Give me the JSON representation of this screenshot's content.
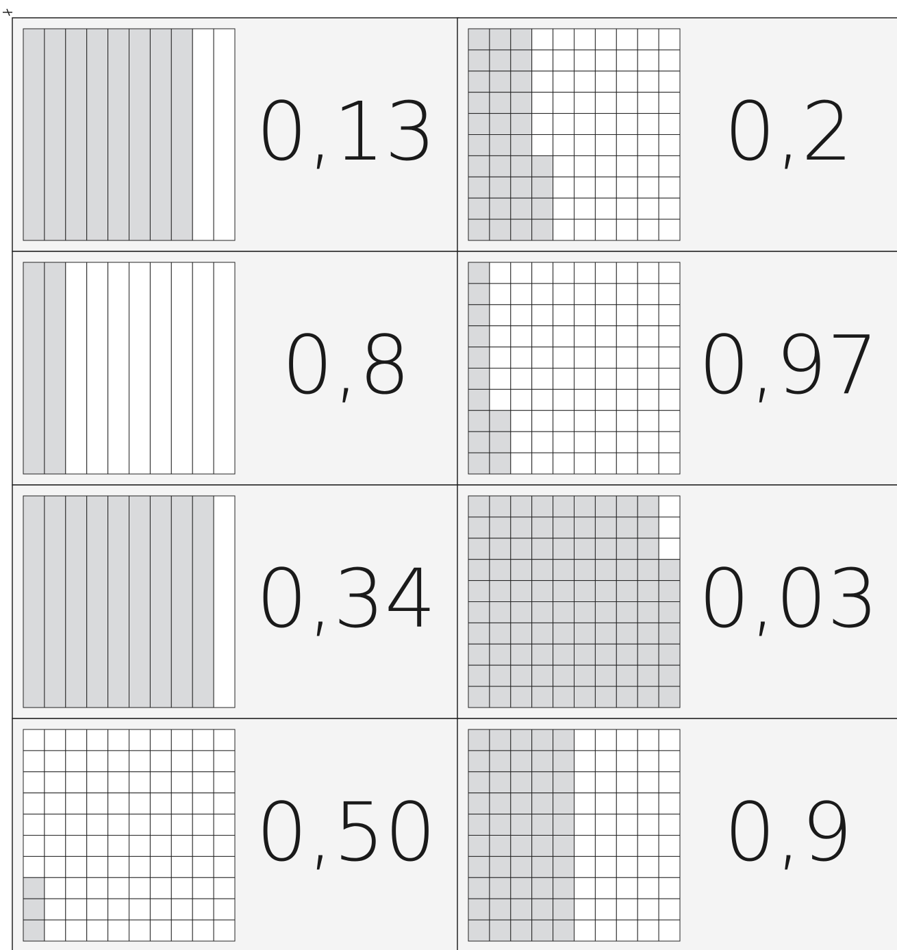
{
  "cards": [
    {
      "label": "0,13",
      "grid": "tenths",
      "shaded": 8
    },
    {
      "label": "0,2",
      "grid": "hundredths",
      "shaded": 34
    },
    {
      "label": "0,8",
      "grid": "tenths",
      "shaded": 2
    },
    {
      "label": "0,97",
      "grid": "hundredths",
      "shaded": 13
    },
    {
      "label": "0,34",
      "grid": "tenths",
      "shaded": 9
    },
    {
      "label": "0,03",
      "grid": "hundredths",
      "shaded": 97
    },
    {
      "label": "0,50",
      "grid": "hundredths",
      "shaded": 3
    },
    {
      "label": "0,9",
      "grid": "hundredths",
      "shaded": 50
    }
  ]
}
